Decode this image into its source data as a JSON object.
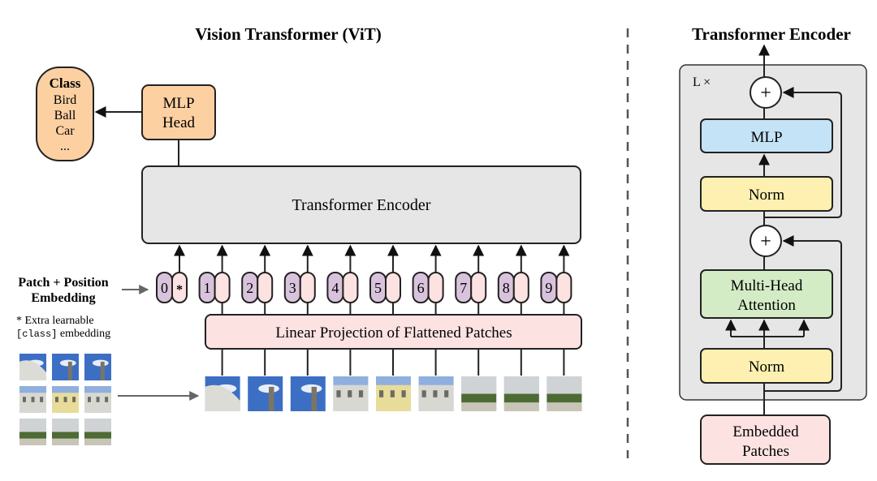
{
  "vit": {
    "title": "Vision Transformer (ViT)",
    "class_box": {
      "title": "Class",
      "items": [
        "Bird",
        "Ball",
        "Car",
        "..."
      ]
    },
    "mlp_head": [
      "MLP",
      "Head"
    ],
    "encoder_label": "Transformer Encoder",
    "embedding_label": [
      "Patch + Position",
      "Embedding"
    ],
    "extra_note": {
      "star": "* Extra learnable",
      "code": "[class]",
      "rest": " embedding"
    },
    "tokens": [
      "0",
      "1",
      "2",
      "3",
      "4",
      "5",
      "6",
      "7",
      "8",
      "9"
    ],
    "class_token_mark": "*",
    "projection_label": "Linear Projection of Flattened Patches"
  },
  "encoder_detail": {
    "title": "Transformer Encoder",
    "repeat_label": "L ×",
    "plus": "+",
    "mlp": "MLP",
    "norm": "Norm",
    "attention": [
      "Multi-Head",
      "Attention"
    ],
    "input": [
      "Embedded",
      "Patches"
    ]
  },
  "colors": {
    "class": "#fdd0a2",
    "encoder_bg": "#e6e6e6",
    "token_position": "#d9c3dc",
    "token_patch": "#fde2e2",
    "projection": "#fde2e2",
    "mlp": "#c5e3f6",
    "norm": "#fdf0b0",
    "attention": "#d3ecc6",
    "sky": "#3c6fc4"
  }
}
